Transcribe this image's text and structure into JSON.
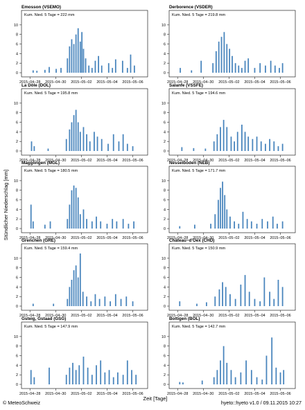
{
  "figure": {
    "ylabel": "Stündlicher Niederschlag [mm]",
    "xlabel": "Zeit [Tage]",
    "credit": "© MeteoSchweiz",
    "version": "hyeto::hyeto v1.0 / 09.11.2015 10:27",
    "bar_color": "#4a86bd"
  },
  "chart_data": [
    {
      "type": "bar",
      "title": "Emosson (VSEMO)",
      "annotation": "Kum. Nied. 5 Tage = 222 mm",
      "xticks": [
        "2015−04−28",
        "2015−04−30",
        "2015−05−02",
        "2015−05−04",
        "2015−05−06"
      ],
      "yticks": [
        0,
        2,
        4,
        6,
        8,
        10
      ],
      "ylim": [
        0,
        11
      ],
      "x": [
        "2015-04-28 06:00",
        "2015-04-28 13:00",
        "2015-04-29 04:00",
        "2015-04-29 12:00",
        "2015-04-30 01:00",
        "2015-04-30 10:00",
        "2015-04-30 22:00",
        "2015-05-01 02:00",
        "2015-05-01 06:00",
        "2015-05-01 10:00",
        "2015-05-01 14:00",
        "2015-05-01 18:00",
        "2015-05-01 22:00",
        "2015-05-02 01:00",
        "2015-05-02 04:00",
        "2015-05-02 08:00",
        "2015-05-02 14:00",
        "2015-05-02 20:00",
        "2015-05-03 02:00",
        "2015-05-03 08:00",
        "2015-05-03 14:00",
        "2015-05-04 03:00",
        "2015-05-04 10:00",
        "2015-05-04 16:00",
        "2015-05-05 05:00",
        "2015-05-05 14:00",
        "2015-05-05 20:00",
        "2015-05-06 03:00"
      ],
      "values": [
        0.5,
        0.4,
        0.6,
        1.2,
        0.8,
        1.0,
        3.0,
        5.5,
        7.0,
        6.0,
        8.0,
        9.3,
        6.5,
        8.5,
        5.0,
        3.0,
        1.5,
        1.0,
        2.5,
        3.5,
        1.5,
        2.0,
        1.0,
        2.8,
        2.5,
        1.0,
        3.8,
        1.5
      ]
    },
    {
      "type": "bar",
      "title": "Derborence (VSDER)",
      "annotation": "Kum. Nied. 5 Tage = 219.8 mm",
      "xticks": [
        "2015−04−28",
        "2015−04−30",
        "2015−05−02",
        "2015−05−04",
        "2015−05−06"
      ],
      "yticks": [
        0,
        2,
        4,
        6,
        8,
        10
      ],
      "ylim": [
        0,
        11
      ],
      "x": [
        "2015-04-28 05:00",
        "2015-04-29 02:00",
        "2015-04-29 20:00",
        "2015-04-30 18:00",
        "2015-05-01 00:00",
        "2015-05-01 05:00",
        "2015-05-01 10:00",
        "2015-05-01 15:00",
        "2015-05-01 20:00",
        "2015-05-02 01:00",
        "2015-05-02 06:00",
        "2015-05-02 12:00",
        "2015-05-02 18:00",
        "2015-05-03 00:00",
        "2015-05-03 06:00",
        "2015-05-03 12:00",
        "2015-05-04 00:00",
        "2015-05-04 10:00",
        "2015-05-04 20:00",
        "2015-05-05 06:00",
        "2015-05-05 14:00",
        "2015-05-05 22:00",
        "2015-05-06 04:00"
      ],
      "values": [
        1.0,
        0.5,
        2.5,
        2.0,
        4.5,
        6.5,
        7.5,
        8.5,
        6.0,
        5.0,
        3.5,
        2.0,
        1.5,
        1.0,
        2.5,
        3.0,
        1.0,
        2.0,
        1.5,
        2.5,
        1.5,
        1.0,
        2.0
      ]
    },
    {
      "type": "bar",
      "title": "La Dôle (DOL)",
      "annotation": "Kum. Nied. 5 Tage = 195.8 mm",
      "xticks": [
        "2015−04−28",
        "2015−04−30",
        "2015−05−02",
        "2015−05−04",
        "2015−05−06"
      ],
      "yticks": [
        0,
        2,
        4,
        6,
        8,
        10
      ],
      "ylim": [
        0,
        11
      ],
      "x": [
        "2015-04-28 03:00",
        "2015-04-28 08:00",
        "2015-04-29 10:00",
        "2015-04-30 20:00",
        "2015-05-01 02:00",
        "2015-05-01 06:00",
        "2015-05-01 10:00",
        "2015-05-01 14:00",
        "2015-05-01 18:00",
        "2015-05-01 22:00",
        "2015-05-02 04:00",
        "2015-05-02 10:00",
        "2015-05-02 16:00",
        "2015-05-03 00:00",
        "2015-05-03 06:00",
        "2015-05-03 14:00",
        "2015-05-04 02:00",
        "2015-05-04 12:00",
        "2015-05-04 22:00",
        "2015-05-05 06:00",
        "2015-05-05 14:00",
        "2015-05-06 00:00"
      ],
      "values": [
        2.0,
        1.0,
        0.5,
        2.5,
        4.5,
        6.0,
        7.5,
        8.6,
        6.0,
        4.0,
        5.0,
        3.5,
        2.0,
        4.0,
        3.0,
        2.5,
        1.5,
        3.5,
        2.0,
        3.5,
        1.5,
        1.0
      ]
    },
    {
      "type": "bar",
      "title": "Salanfe (VSSFE)",
      "annotation": "Kum. Nied. 5 Tage = 194.6 mm",
      "xticks": [
        "2015−04−28",
        "2015−04−30",
        "2015−05−02",
        "2015−05−04",
        "2015−05−06"
      ],
      "yticks": [
        0,
        2,
        4,
        6,
        8,
        10
      ],
      "ylim": [
        0,
        11
      ],
      "x": [
        "2015-04-28 08:00",
        "2015-04-29 06:00",
        "2015-04-30 04:00",
        "2015-04-30 20:00",
        "2015-05-01 02:00",
        "2015-05-01 08:00",
        "2015-05-01 14:00",
        "2015-05-01 20:00",
        "2015-05-02 04:00",
        "2015-05-02 10:00",
        "2015-05-02 16:00",
        "2015-05-03 00:00",
        "2015-05-03 06:00",
        "2015-05-03 12:00",
        "2015-05-03 20:00",
        "2015-05-04 04:00",
        "2015-05-04 12:00",
        "2015-05-04 20:00",
        "2015-05-05 04:00",
        "2015-05-05 12:00",
        "2015-05-05 20:00",
        "2015-05-06 04:00"
      ],
      "values": [
        0.8,
        0.6,
        0.5,
        2.0,
        3.5,
        5.0,
        6.5,
        5.0,
        3.0,
        2.0,
        4.0,
        5.5,
        4.0,
        3.0,
        2.5,
        3.0,
        2.0,
        1.5,
        2.5,
        2.0,
        1.0,
        1.5
      ]
    },
    {
      "type": "bar",
      "title": "Magglingen (MGL)",
      "annotation": "Kum. Nied. 5 Tage = 180.5 mm",
      "xticks": [
        "2015−04−28",
        "2015−04−30",
        "2015−05−02",
        "2015−05−04",
        "2015−05−06"
      ],
      "yticks": [
        0,
        2,
        4,
        6,
        8,
        10
      ],
      "ylim": [
        0,
        11
      ],
      "x": [
        "2015-04-28 02:00",
        "2015-04-28 06:00",
        "2015-04-29 04:00",
        "2015-04-29 14:00",
        "2015-04-30 22:00",
        "2015-05-01 02:00",
        "2015-05-01 06:00",
        "2015-05-01 10:00",
        "2015-05-01 14:00",
        "2015-05-01 18:00",
        "2015-05-01 22:00",
        "2015-05-02 04:00",
        "2015-05-02 10:00",
        "2015-05-02 20:00",
        "2015-05-03 04:00",
        "2015-05-03 12:00",
        "2015-05-04 00:00",
        "2015-05-04 10:00",
        "2015-05-04 18:00",
        "2015-05-05 06:00",
        "2015-05-05 16:00",
        "2015-05-06 02:00"
      ],
      "values": [
        5.0,
        1.5,
        0.8,
        1.5,
        2.0,
        5.0,
        8.0,
        9.0,
        8.5,
        6.5,
        3.0,
        4.0,
        2.0,
        1.5,
        2.5,
        1.5,
        1.0,
        2.0,
        1.5,
        2.0,
        1.0,
        1.5
      ]
    },
    {
      "type": "bar",
      "title": "Nesselboden (NEB)",
      "annotation": "Kum. Nied. 5 Tage = 171.7 mm",
      "xticks": [
        "2015−04−28",
        "2015−04−30",
        "2015−05−02",
        "2015−05−04",
        "2015−05−06"
      ],
      "yticks": [
        0,
        2,
        4,
        6,
        8,
        10
      ],
      "ylim": [
        0,
        11
      ],
      "x": [
        "2015-04-28 04:00",
        "2015-04-29 08:00",
        "2015-04-30 14:00",
        "2015-04-30 22:00",
        "2015-05-01 04:00",
        "2015-05-01 08:00",
        "2015-05-01 12:00",
        "2015-05-01 16:00",
        "2015-05-01 20:00",
        "2015-05-02 02:00",
        "2015-05-02 10:00",
        "2015-05-02 18:00",
        "2015-05-03 02:00",
        "2015-05-03 10:00",
        "2015-05-03 18:00",
        "2015-05-04 04:00",
        "2015-05-04 14:00",
        "2015-05-05 00:00",
        "2015-05-05 10:00",
        "2015-05-05 18:00",
        "2015-05-06 04:00"
      ],
      "values": [
        0.5,
        0.8,
        1.0,
        3.0,
        6.0,
        8.5,
        9.8,
        7.0,
        4.0,
        2.5,
        1.5,
        1.0,
        3.5,
        2.0,
        1.5,
        1.0,
        2.0,
        1.5,
        2.5,
        1.0,
        1.5
      ]
    },
    {
      "type": "bar",
      "title": "Grenchen (GRE)",
      "annotation": "Kum. Nied. 5 Tage = 159.4 mm",
      "xticks": [
        "2015−04−28",
        "2015−04−30",
        "2015−05−02",
        "2015−05−04",
        "2015−05−06"
      ],
      "yticks": [
        0,
        2,
        4,
        6,
        8,
        10
      ],
      "ylim": [
        0,
        11
      ],
      "x": [
        "2015-04-28 06:00",
        "2015-04-29 20:00",
        "2015-04-30 22:00",
        "2015-05-01 02:00",
        "2015-05-01 06:00",
        "2015-05-01 10:00",
        "2015-05-01 14:00",
        "2015-05-01 18:00",
        "2015-05-01 22:00",
        "2015-05-02 03:00",
        "2015-05-02 10:00",
        "2015-05-02 18:00",
        "2015-05-03 02:00",
        "2015-05-03 10:00",
        "2015-05-03 20:00",
        "2015-05-04 06:00",
        "2015-05-04 16:00",
        "2015-05-05 02:00",
        "2015-05-05 12:00",
        "2015-05-06 00:00"
      ],
      "values": [
        0.5,
        0.5,
        1.5,
        4.0,
        5.5,
        7.5,
        8.5,
        6.0,
        11.0,
        3.0,
        2.0,
        1.0,
        2.5,
        1.5,
        2.0,
        1.0,
        2.5,
        1.5,
        2.0,
        1.0
      ]
    },
    {
      "type": "bar",
      "title": "Château−d'Oex (CHD)",
      "annotation": "Kum. Nied. 5 Tage = 150.9 mm",
      "xticks": [
        "2015−04−28",
        "2015−04−30",
        "2015−05−02",
        "2015−05−04",
        "2015−05−06"
      ],
      "yticks": [
        0,
        2,
        4,
        6,
        8,
        10
      ],
      "ylim": [
        0,
        11
      ],
      "x": [
        "2015-04-28 04:00",
        "2015-04-29 12:00",
        "2015-04-30 06:00",
        "2015-04-30 22:00",
        "2015-05-01 06:00",
        "2015-05-01 12:00",
        "2015-05-01 18:00",
        "2015-05-02 02:00",
        "2015-05-02 12:00",
        "2015-05-02 22:00",
        "2015-05-03 06:00",
        "2015-05-03 14:00",
        "2015-05-04 00:00",
        "2015-05-04 10:00",
        "2015-05-04 18:00",
        "2015-05-05 04:00",
        "2015-05-05 12:00",
        "2015-05-05 20:00",
        "2015-05-06 04:00"
      ],
      "values": [
        1.0,
        0.5,
        0.8,
        2.0,
        3.5,
        5.0,
        4.0,
        2.5,
        1.5,
        4.5,
        6.5,
        3.0,
        1.5,
        1.0,
        6.0,
        3.0,
        1.5,
        5.5,
        4.0
      ]
    },
    {
      "type": "bar",
      "title": "Gsteig, Gstaad (GSG)",
      "annotation": "Kum. Nied. 5 Tage = 147.9 mm",
      "xticks": [
        "2015−04−28",
        "2015−04−30",
        "2015−05−02",
        "2015−05−04",
        "2015−05−06"
      ],
      "yticks": [
        0,
        2,
        4,
        6,
        8,
        10
      ],
      "ylim": [
        0,
        11
      ],
      "x": [
        "2015-04-28 02:00",
        "2015-04-28 08:00",
        "2015-04-29 12:00",
        "2015-04-30 20:00",
        "2015-05-01 02:00",
        "2015-05-01 08:00",
        "2015-05-01 14:00",
        "2015-05-01 20:00",
        "2015-05-02 04:00",
        "2015-05-02 12:00",
        "2015-05-02 20:00",
        "2015-05-03 04:00",
        "2015-05-03 12:00",
        "2015-05-03 20:00",
        "2015-05-04 04:00",
        "2015-05-04 12:00",
        "2015-05-04 20:00",
        "2015-05-05 06:00",
        "2015-05-05 14:00",
        "2015-05-05 22:00",
        "2015-05-06 06:00"
      ],
      "values": [
        3.0,
        1.5,
        3.5,
        2.0,
        3.5,
        4.5,
        3.0,
        4.0,
        5.8,
        3.5,
        2.0,
        4.0,
        5.0,
        2.5,
        3.0,
        1.5,
        2.5,
        2.0,
        5.0,
        3.0,
        2.0
      ]
    },
    {
      "type": "bar",
      "title": "Boltigen (BOL)",
      "annotation": "Kum. Nied. 5 Tage = 142.7 mm",
      "xticks": [
        "2015−04−28",
        "2015−04−30",
        "2015−05−02",
        "2015−05−04",
        "2015−05−06"
      ],
      "yticks": [
        0,
        2,
        4,
        6,
        8,
        10
      ],
      "ylim": [
        0,
        11
      ],
      "x": [
        "2015-04-28 04:00",
        "2015-04-28 10:00",
        "2015-04-29 22:00",
        "2015-04-30 20:00",
        "2015-05-01 02:00",
        "2015-05-01 08:00",
        "2015-05-01 14:00",
        "2015-05-01 20:00",
        "2015-05-02 04:00",
        "2015-05-02 12:00",
        "2015-05-02 22:00",
        "2015-05-03 08:00",
        "2015-05-03 18:00",
        "2015-05-04 04:00",
        "2015-05-04 14:00",
        "2015-05-04 22:00",
        "2015-05-05 08:00",
        "2015-05-05 16:00",
        "2015-05-06 00:00",
        "2015-05-06 06:00"
      ],
      "values": [
        0.5,
        0.4,
        0.8,
        1.5,
        3.0,
        5.0,
        8.0,
        4.5,
        3.0,
        1.5,
        2.5,
        5.0,
        3.0,
        1.5,
        1.0,
        6.0,
        9.8,
        3.5,
        2.5,
        3.0
      ]
    }
  ]
}
